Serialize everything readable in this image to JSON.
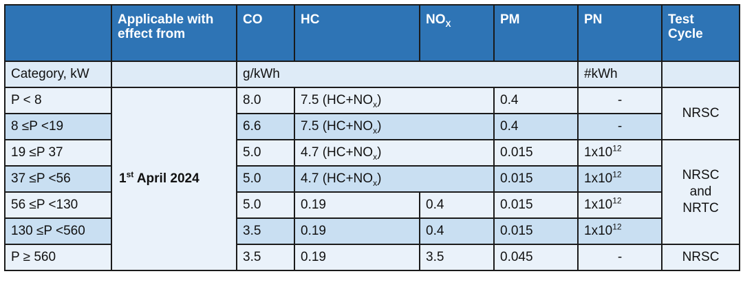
{
  "header": {
    "blank": "",
    "applicable_line1": "Applicable with",
    "applicable_line2": "effect from",
    "co": "CO",
    "hc": "HC",
    "nox_base": "NO",
    "nox_sub": "X",
    "pm": "PM",
    "pn": "PN",
    "test_cycle_line1": "Test",
    "test_cycle_line2": "Cycle"
  },
  "units_row": {
    "category": "Category, kW",
    "gkwh": "g/kWh",
    "pn_unit": "#kWh"
  },
  "date": {
    "day": "1",
    "suffix": "st",
    "rest": " April 2024"
  },
  "rows": [
    {
      "category": "P < 8",
      "co": "8.0",
      "hc_base": "7.5 (HC+NO",
      "hc_sub": "x",
      "hc_end": ")",
      "pm": "0.4",
      "pn": "-"
    },
    {
      "category": "8 ≤P <19",
      "co": "6.6",
      "hc_base": "7.5 (HC+NO",
      "hc_sub": "x",
      "hc_end": ")",
      "pm": "0.4",
      "pn": "-"
    },
    {
      "category": "19 ≤P 37",
      "co": "5.0",
      "hc_base": "4.7 (HC+NO",
      "hc_sub": "x",
      "hc_end": ")",
      "pm": "0.015",
      "pn_base": "1x10",
      "pn_exp": "12"
    },
    {
      "category": "37 ≤P <56",
      "co": "5.0",
      "hc_base": "4.7 (HC+NO",
      "hc_sub": "x",
      "hc_end": ")",
      "pm": "0.015",
      "pn_base": "1x10",
      "pn_exp": "12"
    },
    {
      "category": "56 ≤P <130",
      "co": "5.0",
      "hc": "0.19",
      "nox": "0.4",
      "pm": "0.015",
      "pn_base": "1x10",
      "pn_exp": "12"
    },
    {
      "category": "130 ≤P <560",
      "co": "3.5",
      "hc": "0.19",
      "nox": "0.4",
      "pm": "0.015",
      "pn_base": "1x10",
      "pn_exp": "12"
    },
    {
      "category": "P ≥ 560",
      "co": "3.5",
      "hc": "0.19",
      "nox": "3.5",
      "pm": "0.045",
      "pn": "-"
    }
  ],
  "test_cycles": {
    "group1": "NRSC",
    "group2_line1": "NRSC",
    "group2_line2": "and",
    "group2_line3": "NRTC",
    "group3": "NRSC"
  }
}
